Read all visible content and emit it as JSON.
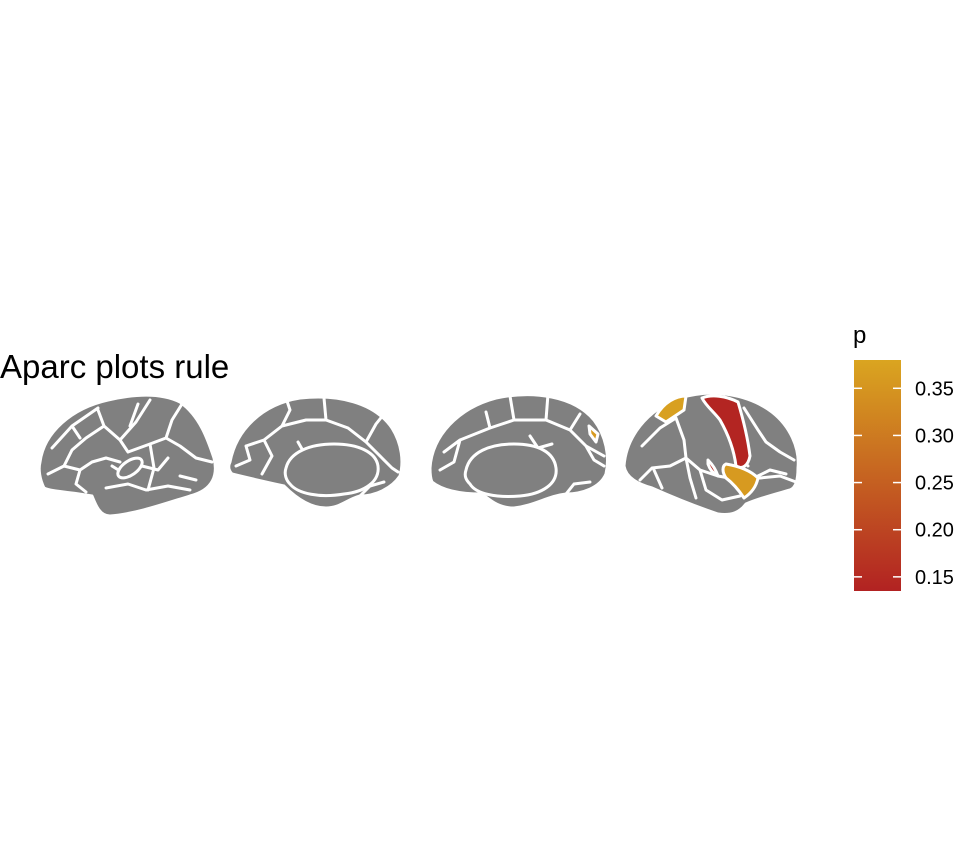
{
  "title": "Aparc plots rule",
  "colors": {
    "background": "#ffffff",
    "unmapped_region": "#808080",
    "region_border": "#ffffff",
    "scale_low": "#B22222",
    "scale_high": "#DAA520"
  },
  "legend": {
    "title": "p",
    "ticks": [
      {
        "value": 0.35,
        "label": "0.35"
      },
      {
        "value": 0.3,
        "label": "0.30"
      },
      {
        "value": 0.25,
        "label": "0.25"
      },
      {
        "value": 0.2,
        "label": "0.20"
      },
      {
        "value": 0.15,
        "label": "0.15"
      }
    ]
  },
  "chart_data": {
    "type": "brain-atlas",
    "atlas": "aparc",
    "title": "Aparc plots rule",
    "legend_title": "p",
    "scale_range": [
      0.135,
      0.38
    ],
    "views": [
      "left lateral",
      "left medial",
      "right medial",
      "right lateral"
    ],
    "highlighted_regions": [
      {
        "view": "right lateral",
        "p": 0.37
      },
      {
        "view": "right lateral",
        "p": 0.14
      },
      {
        "view": "right lateral",
        "p": 0.36
      },
      {
        "view": "right lateral",
        "p": 0.15
      },
      {
        "view": "right medial",
        "p": 0.36
      }
    ]
  }
}
